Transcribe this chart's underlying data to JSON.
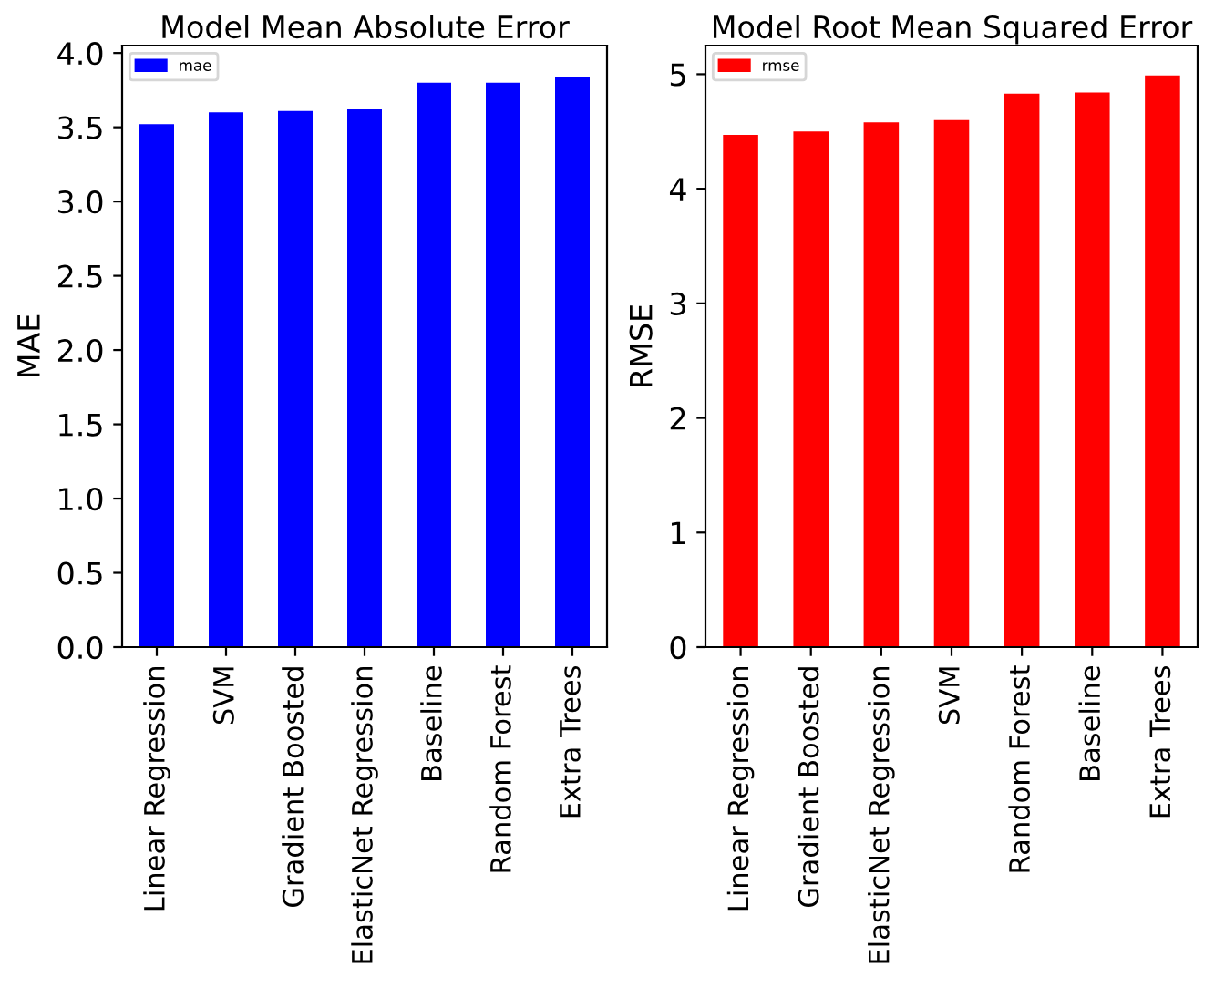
{
  "chart_data": [
    {
      "type": "bar",
      "title": "Model Mean Absolute Error",
      "ylabel": "MAE",
      "categories": [
        "Linear Regression",
        "SVM",
        "Gradient Boosted",
        "ElasticNet Regression",
        "Baseline",
        "Random Forest",
        "Extra Trees"
      ],
      "series": [
        {
          "name": "mae",
          "color": "#0000ff",
          "values": [
            3.52,
            3.6,
            3.61,
            3.62,
            3.8,
            3.8,
            3.84
          ]
        }
      ],
      "ylim": [
        0,
        4.05
      ],
      "yticks": [
        {
          "value": 0,
          "label": "0.0"
        },
        0.5,
        {
          "value": 1,
          "label": "1.0"
        },
        1.5,
        {
          "value": 2,
          "label": "2.0"
        },
        2.5,
        {
          "value": 3,
          "label": "3.0"
        },
        3.5,
        {
          "value": 4,
          "label": "4.0"
        }
      ],
      "legend": "top left",
      "grid": false
    },
    {
      "type": "bar",
      "title": "Model Root Mean Squared Error",
      "ylabel": "RMSE",
      "categories": [
        "Linear Regression",
        "Gradient Boosted",
        "ElasticNet Regression",
        "SVM",
        "Random Forest",
        "Baseline",
        "Extra Trees"
      ],
      "series": [
        {
          "name": "rmse",
          "color": "#ff0000",
          "values": [
            4.47,
            4.5,
            4.58,
            4.6,
            4.83,
            4.84,
            4.99
          ]
        }
      ],
      "ylim": [
        0,
        5.25
      ],
      "yticks": [
        0,
        1,
        2,
        3,
        4,
        5
      ],
      "legend": "top left",
      "grid": false
    }
  ]
}
